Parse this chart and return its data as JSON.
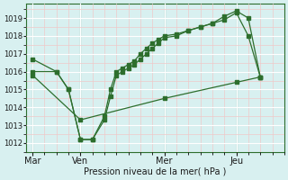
{
  "background_color": "#d8f0f0",
  "grid_color_major": "#ffffff",
  "grid_color_minor": "#f0c8c8",
  "line_color": "#2d6e2d",
  "xlabel": "Pression niveau de la mer( hPa )",
  "ylim": [
    1011.5,
    1019.8
  ],
  "yticks": [
    1012,
    1013,
    1014,
    1015,
    1016,
    1017,
    1018,
    1019
  ],
  "day_labels": [
    "Mar",
    "Ven",
    "Mer",
    "Jeu"
  ],
  "day_positions": [
    0,
    4,
    11,
    17
  ],
  "xlim": [
    -0.5,
    21
  ],
  "line1_x": [
    0,
    2,
    3,
    4,
    5,
    6,
    6.5,
    7,
    7.5,
    8,
    8.5,
    9,
    9.5,
    10,
    10.5,
    11,
    12,
    13,
    14,
    15,
    16,
    17,
    18,
    19
  ],
  "line1_y": [
    1016.7,
    1016.0,
    1015.0,
    1012.2,
    1012.2,
    1013.3,
    1014.6,
    1015.8,
    1016.0,
    1016.2,
    1016.4,
    1016.7,
    1017.0,
    1017.3,
    1017.6,
    1017.9,
    1018.0,
    1018.3,
    1018.5,
    1018.7,
    1019.1,
    1019.4,
    1019.0,
    1015.7
  ],
  "line2_x": [
    0,
    2,
    3,
    4,
    5,
    6,
    6.5,
    7,
    7.5,
    8,
    8.5,
    9,
    9.5,
    10,
    10.5,
    11,
    12,
    13,
    14,
    15,
    16,
    17,
    18,
    19
  ],
  "line2_y": [
    1016.0,
    1016.0,
    1015.0,
    1012.2,
    1012.2,
    1013.5,
    1015.0,
    1016.0,
    1016.2,
    1016.4,
    1016.6,
    1017.0,
    1017.3,
    1017.6,
    1017.8,
    1018.0,
    1018.1,
    1018.3,
    1018.5,
    1018.7,
    1018.9,
    1019.3,
    1018.0,
    1015.7
  ],
  "line3_x": [
    0,
    4,
    11,
    17,
    19
  ],
  "line3_y": [
    1015.8,
    1013.3,
    1014.5,
    1015.4,
    1015.7
  ]
}
